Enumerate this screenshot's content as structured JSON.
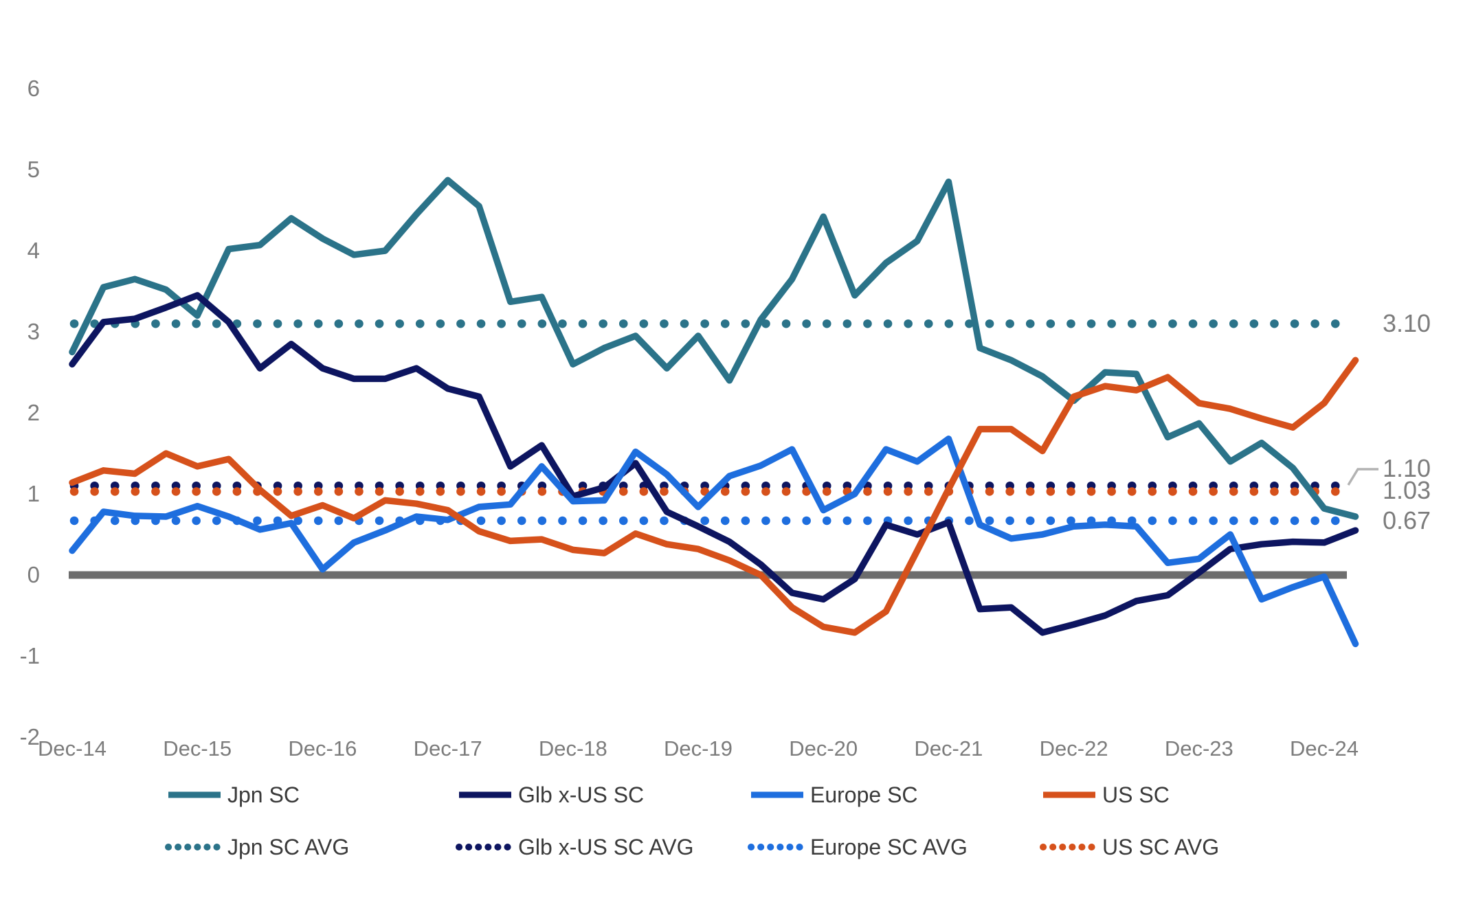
{
  "chart_data": {
    "type": "line",
    "title": "",
    "xlabel": "",
    "ylabel": "",
    "x_tick_labels": [
      "Dec-14",
      "Dec-15",
      "Dec-16",
      "Dec-17",
      "Dec-18",
      "Dec-19",
      "Dec-20",
      "Dec-21",
      "Dec-22",
      "Dec-23",
      "Dec-24"
    ],
    "y_tick_labels": [
      "6",
      "5",
      "4",
      "3",
      "2",
      "1",
      "0",
      "-1",
      "-2"
    ],
    "y_tick_values": [
      6,
      5,
      4,
      3,
      2,
      1,
      0,
      -1,
      -2
    ],
    "ylim": [
      -2.6,
      6.4
    ],
    "grid": "off",
    "legend_position": "bottom",
    "frequency": "quarterly from Dec-14 to Mar-25",
    "zero_line_color": "#6d6d6d",
    "axis_label_color": "#7c7c7c",
    "right_label_color": "#7c7c7c",
    "series": [
      {
        "name": "Jpn SC",
        "color": "#2b7389",
        "values": [
          2.75,
          3.55,
          3.65,
          3.52,
          3.2,
          4.02,
          4.07,
          4.4,
          4.15,
          3.95,
          4.0,
          4.45,
          4.87,
          4.55,
          3.37,
          3.43,
          2.6,
          2.8,
          2.95,
          2.55,
          2.95,
          2.4,
          3.15,
          3.65,
          4.42,
          3.45,
          3.85,
          4.12,
          4.85,
          2.8,
          2.65,
          2.45,
          2.15,
          2.5,
          2.48,
          1.7,
          1.87,
          1.4,
          1.63,
          1.32,
          0.82,
          0.72
        ]
      },
      {
        "name": "Glb x-US SC",
        "color": "#0d1560",
        "values": [
          2.6,
          3.12,
          3.16,
          3.3,
          3.45,
          3.12,
          2.55,
          2.85,
          2.55,
          2.42,
          2.42,
          2.55,
          2.3,
          2.2,
          1.34,
          1.6,
          0.97,
          1.08,
          1.38,
          0.78,
          0.6,
          0.41,
          0.13,
          -0.22,
          -0.3,
          -0.05,
          0.62,
          0.5,
          0.65,
          -0.42,
          -0.4,
          -0.71,
          -0.61,
          -0.5,
          -0.32,
          -0.25,
          0.03,
          0.32,
          0.38,
          0.41,
          0.4,
          0.55
        ]
      },
      {
        "name": "Europe SC",
        "color": "#1e6ede",
        "values": [
          0.3,
          0.78,
          0.73,
          0.72,
          0.85,
          0.72,
          0.56,
          0.64,
          0.07,
          0.4,
          0.55,
          0.72,
          0.68,
          0.84,
          0.87,
          1.34,
          0.91,
          0.92,
          1.52,
          1.24,
          0.84,
          1.22,
          1.35,
          1.55,
          0.8,
          1.0,
          1.55,
          1.4,
          1.68,
          0.62,
          0.45,
          0.5,
          0.6,
          0.62,
          0.6,
          0.15,
          0.2,
          0.5,
          -0.3,
          -0.15,
          -0.02,
          -0.85
        ]
      },
      {
        "name": "US SC",
        "color": "#d6511b",
        "values": [
          1.14,
          1.29,
          1.25,
          1.5,
          1.34,
          1.43,
          1.05,
          0.73,
          0.86,
          0.7,
          0.92,
          0.88,
          0.8,
          0.54,
          0.42,
          0.44,
          0.31,
          0.27,
          0.51,
          0.38,
          0.32,
          0.18,
          0.0,
          -0.4,
          -0.64,
          -0.71,
          -0.45,
          0.3,
          1.06,
          1.8,
          1.8,
          1.53,
          2.2,
          2.33,
          2.28,
          2.44,
          2.12,
          2.05,
          1.93,
          1.82,
          2.12,
          2.65
        ]
      }
    ],
    "average_lines": [
      {
        "name": "Jpn SC AVG",
        "color": "#2b7389",
        "value": 3.1,
        "label": "3.10"
      },
      {
        "name": "Glb x-US SC AVG",
        "color": "#0d1560",
        "value": 1.1,
        "label": "1.10"
      },
      {
        "name": "Europe SC AVG",
        "color": "#1e6ede",
        "value": 0.67,
        "label": "0.67"
      },
      {
        "name": "US SC AVG",
        "color": "#d6511b",
        "value": 1.03,
        "label": "1.03"
      }
    ],
    "legend_row1": [
      "Jpn SC",
      "Glb x-US SC",
      "Europe SC",
      "US SC"
    ],
    "legend_row2": [
      "Jpn SC AVG",
      "Glb x-US SC AVG",
      "Europe SC AVG",
      "US SC AVG"
    ]
  }
}
